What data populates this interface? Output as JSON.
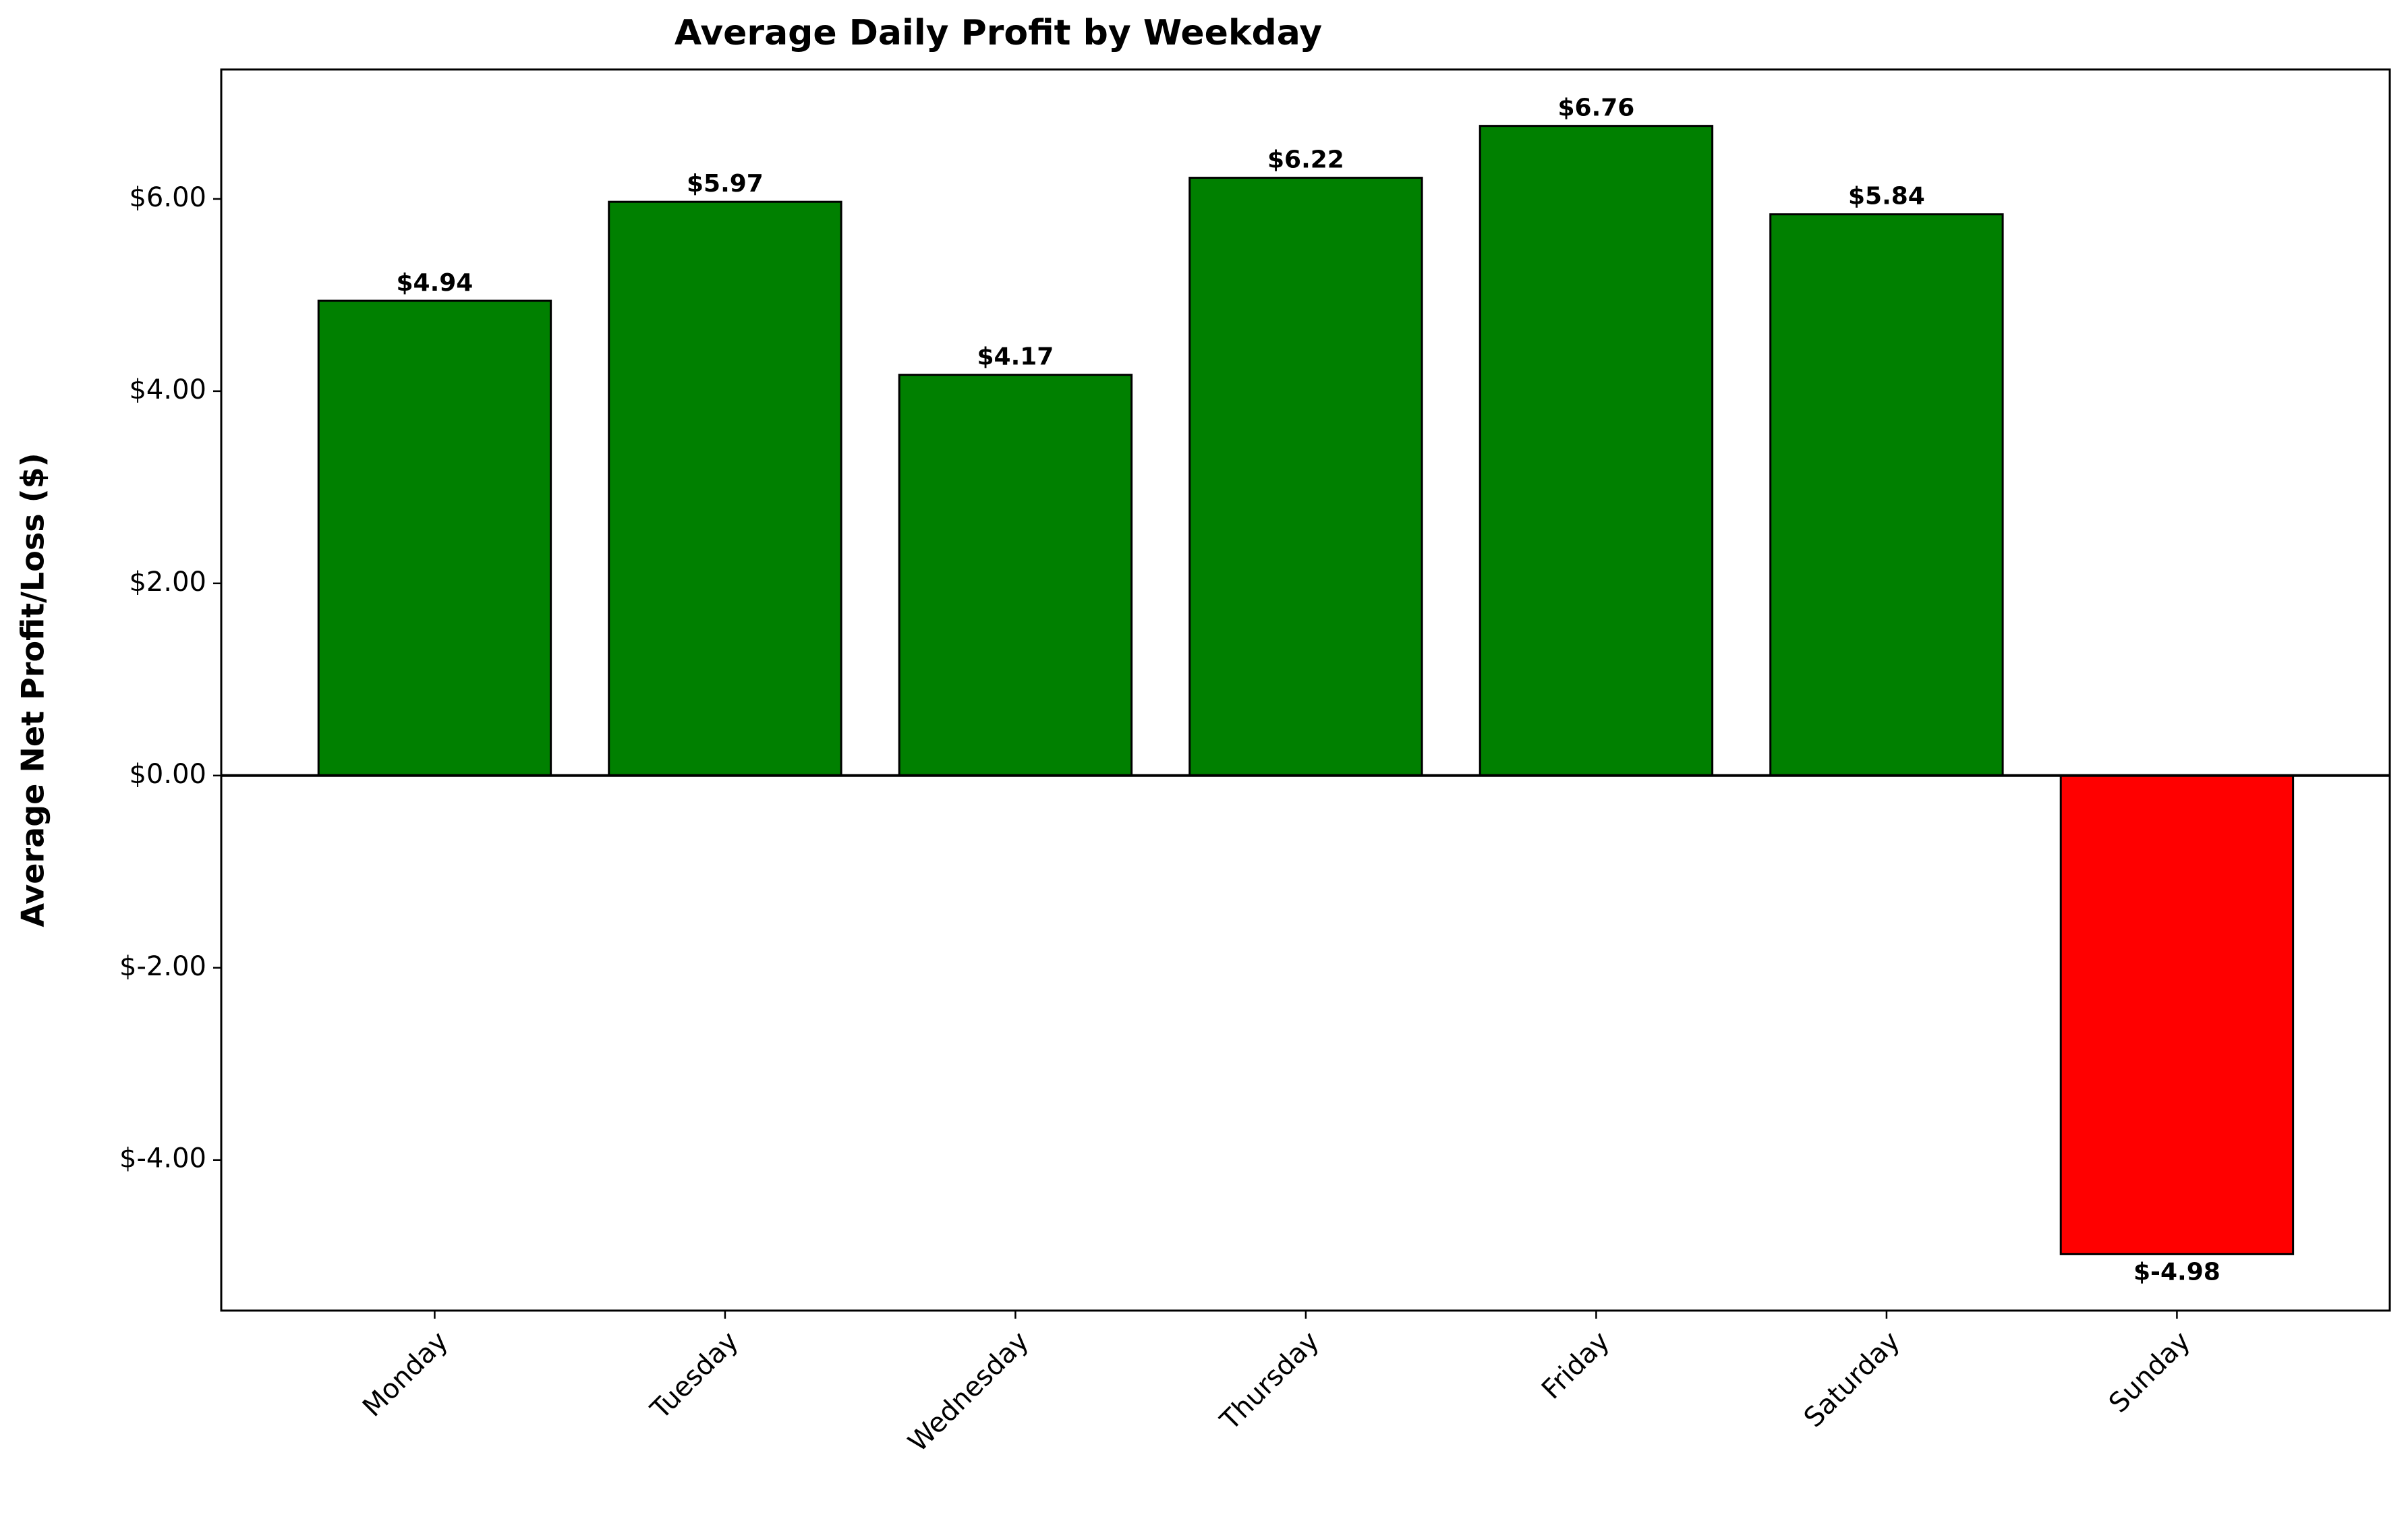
{
  "chart_data": {
    "type": "bar",
    "title": "Average Daily Profit by Weekday",
    "y_label": "Average Net Profit/Loss ($)",
    "categories": [
      "Monday",
      "Tuesday",
      "Wednesday",
      "Thursday",
      "Friday",
      "Saturday",
      "Sunday"
    ],
    "values": [
      4.94,
      5.97,
      4.17,
      6.22,
      6.76,
      5.84,
      -4.98
    ],
    "value_labels": [
      "$4.94",
      "$5.97",
      "$4.17",
      "$6.22",
      "$6.76",
      "$5.84",
      "$-4.98"
    ],
    "colors": [
      "#008000",
      "#008000",
      "#008000",
      "#008000",
      "#008000",
      "#008000",
      "#ff0000"
    ],
    "ylim": [
      -5.567,
      7.347
    ],
    "yticks": [
      {
        "value": -4,
        "label": "$-4.00"
      },
      {
        "value": -2,
        "label": "$-2.00"
      },
      {
        "value": 0,
        "label": "$0.00"
      },
      {
        "value": 2,
        "label": "$2.00"
      },
      {
        "value": 4,
        "label": "$4.00"
      },
      {
        "value": 6,
        "label": "$6.00"
      }
    ],
    "grid": false
  }
}
